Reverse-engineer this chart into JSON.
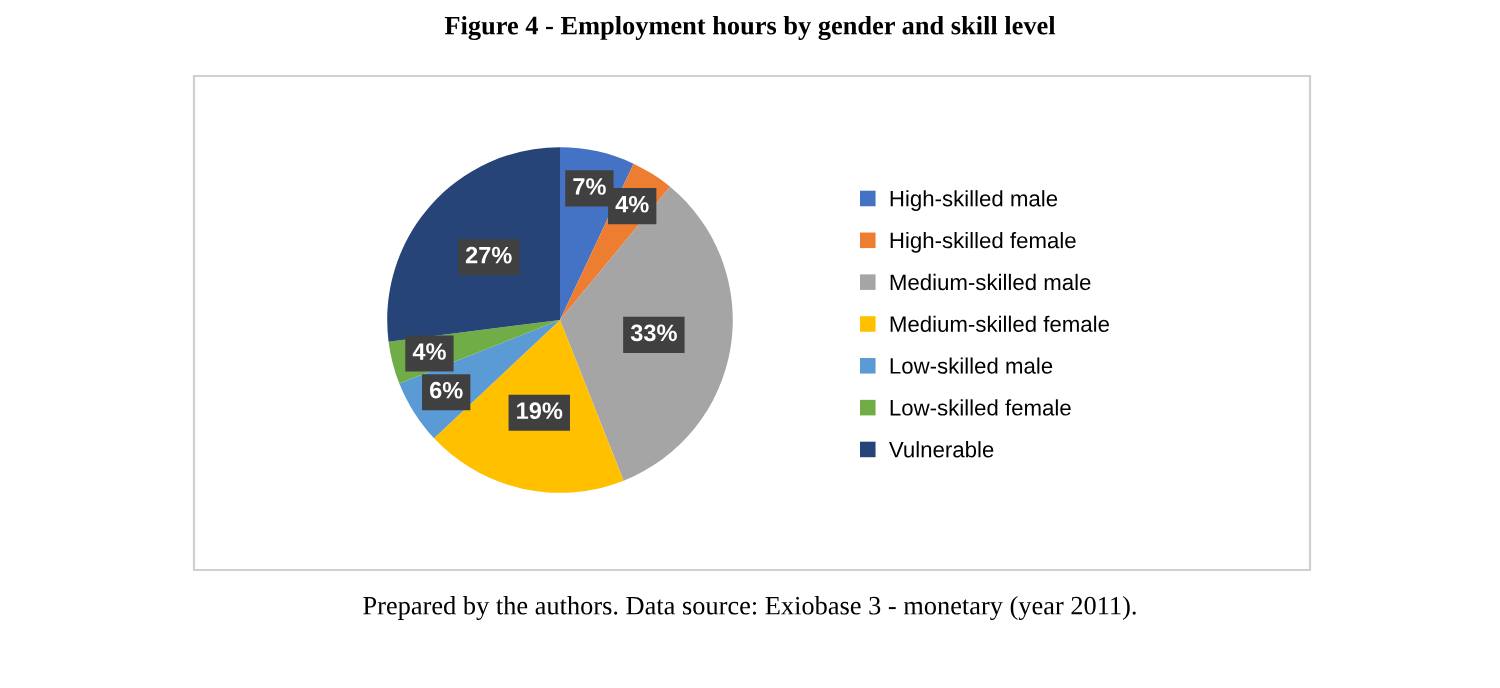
{
  "chart_data": {
    "type": "pie",
    "title": "Figure 4 - Employment hours by gender and skill level",
    "categories": [
      "High-skilled male",
      "High-skilled female",
      "Medium-skilled male",
      "Medium-skilled female",
      "Low-skilled male",
      "Low-skilled female",
      "Vulnerable"
    ],
    "values": [
      7,
      4,
      33,
      19,
      6,
      4,
      27
    ],
    "value_labels": [
      "7%",
      "4%",
      "33%",
      "19%",
      "6%",
      "4%",
      "27%"
    ],
    "colors": [
      "#4472c4",
      "#ed7d31",
      "#a5a5a5",
      "#ffc000",
      "#5b9bd5",
      "#70ad47",
      "#264478"
    ],
    "legend": "right",
    "annotations": [
      "Prepared by the authors. Data source: Exiobase 3 - monetary (year 2011)."
    ]
  }
}
